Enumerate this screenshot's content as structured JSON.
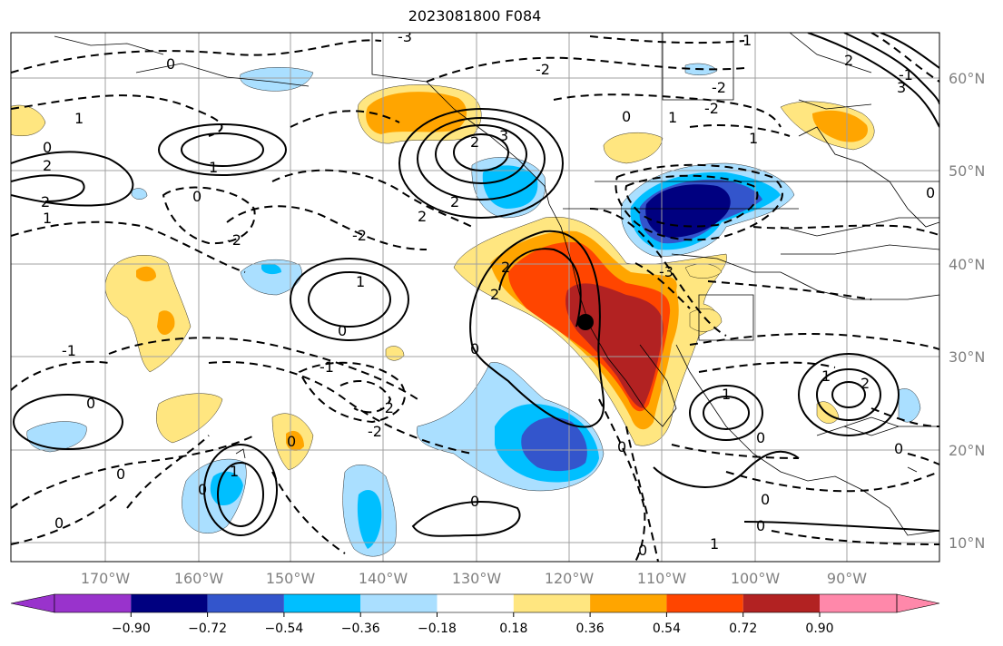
{
  "title": "2023081800 F084",
  "lon_labels": [
    "170°W",
    "160°W",
    "150°W",
    "140°W",
    "130°W",
    "120°W",
    "110°W",
    "100°W",
    "90°W"
  ],
  "lat_labels": [
    "60°N",
    "50°N",
    "40°N",
    "30°N",
    "20°N",
    "10°N"
  ],
  "colorbar": {
    "tick_labels": [
      "−0.90",
      "−0.72",
      "−0.54",
      "−0.36",
      "−0.18",
      "0.18",
      "0.36",
      "0.54",
      "0.72",
      "0.90"
    ],
    "colors": [
      "#9933cc",
      "#000080",
      "#3355cc",
      "#00bfff",
      "#aadfff",
      "#ffffff",
      "#ffe680",
      "#ffa500",
      "#ff4500",
      "#b22222",
      "#ff88aa"
    ]
  },
  "contour_labels": [
    "0",
    "1",
    "2",
    "3",
    "-1",
    "-2",
    "-3"
  ],
  "palette": {
    "neg_light": "#aadfff",
    "neg_mid": "#00bfff",
    "neg_strong": "#3355cc",
    "neg_max": "#000080",
    "pos_light": "#ffe680",
    "pos_mid": "#ffa500",
    "pos_strong": "#ff4500",
    "pos_max": "#b22222"
  }
}
